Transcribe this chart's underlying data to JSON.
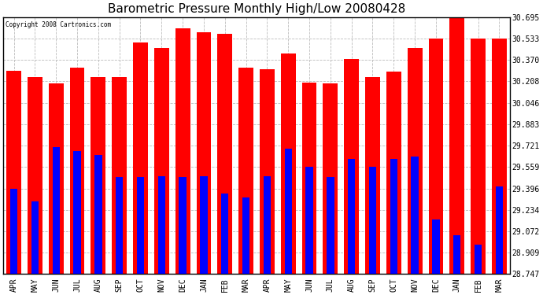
{
  "title": "Barometric Pressure Monthly High/Low 20080428",
  "copyright": "Copyright 2008 Cartronics.com",
  "months": [
    "APR",
    "MAY",
    "JUN",
    "JUL",
    "AUG",
    "SEP",
    "OCT",
    "NOV",
    "DEC",
    "JAN",
    "FEB",
    "MAR",
    "APR",
    "MAY",
    "JUN",
    "JUL",
    "AUG",
    "SEP",
    "OCT",
    "NOV",
    "DEC",
    "JAN",
    "FEB",
    "MAR"
  ],
  "highs": [
    30.285,
    30.24,
    30.195,
    30.31,
    30.24,
    30.24,
    30.5,
    30.46,
    30.61,
    30.58,
    30.57,
    30.31,
    30.3,
    30.42,
    30.2,
    30.195,
    30.375,
    30.24,
    30.28,
    30.46,
    30.53,
    30.695,
    30.53,
    30.53
  ],
  "lows": [
    29.396,
    29.3,
    29.71,
    29.68,
    29.65,
    29.48,
    29.48,
    29.49,
    29.48,
    29.49,
    29.36,
    29.33,
    29.49,
    29.7,
    29.56,
    29.48,
    29.62,
    29.56,
    29.62,
    29.64,
    29.16,
    29.04,
    28.97,
    29.41
  ],
  "ymin": 28.747,
  "ymax": 30.695,
  "yticks": [
    28.747,
    28.909,
    29.072,
    29.234,
    29.396,
    29.559,
    29.721,
    29.883,
    30.046,
    30.208,
    30.37,
    30.533,
    30.695
  ],
  "high_color": "#FF0000",
  "low_color": "#0000FF",
  "bg_color": "#FFFFFF",
  "grid_color": "#BBBBBB",
  "title_fontsize": 11,
  "red_bar_width": 0.7,
  "blue_bar_width": 0.35
}
